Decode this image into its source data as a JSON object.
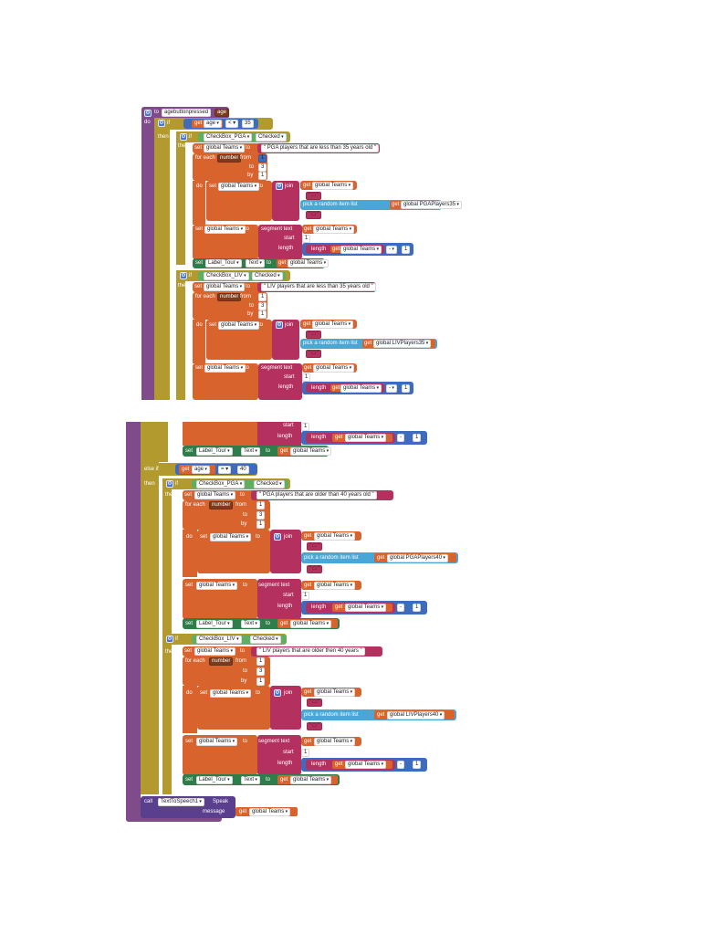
{
  "top": {
    "header_to": "to",
    "proc_name": "agebuttonpressed",
    "param": "age",
    "do": "do",
    "if": "if",
    "get": "get",
    "age": "age",
    "lt": "< ▾",
    "thirtyfive": "35",
    "then": "then",
    "if2": "if",
    "checkbox_pga": "CheckBox_PGA",
    "checked": "Checked",
    "set": "set",
    "global_teams": "global Teams",
    "to": "to",
    "pga_msg": "\" PGA players that are less than 35 years old \"",
    "for_each": "for each",
    "number": "number",
    "from": "from",
    "one": "1",
    "to2": "to",
    "three": "3",
    "by": "by",
    "do2": "do",
    "join": "join",
    "quote_open": "\" □ \"",
    "pick_random": "pick a random item  list",
    "global_pga35": "global PGAPlayers35",
    "segment_text": "segment  text",
    "start": "start",
    "length": "length",
    "length_fn": "length",
    "minus": "-",
    "label_tour": "Label_Tour",
    "text": "Text",
    "checkbox_liv": "CheckBox_LIV",
    "liv_msg": "\" LIV players that are less than 35 years old \"",
    "global_liv35": "global LIVPlayers35"
  },
  "bottom": {
    "start": "start",
    "length": "length",
    "length_fn": "length",
    "global_teams": "global Teams",
    "get": "get",
    "one": "1",
    "minus": "-",
    "set": "set",
    "label_tour": "Label_Tour",
    "text": "Text",
    "to": "to",
    "else_if": "else if",
    "age": "age",
    "eq": "= ▾",
    "forty": "40",
    "then": "then",
    "if": "if",
    "checkbox_pga": "CheckBox_PGA",
    "checked": "Checked",
    "pga_msg": "\" PGA players that are older than 40 years old \"",
    "for_each": "for each",
    "number": "number",
    "from": "from",
    "to2": "to",
    "three": "3",
    "by": "by",
    "do": "do",
    "join": "join",
    "quote": "\" □ \"",
    "pick_random": "pick a random item  list",
    "global_pga40": "global PGAPlayers40",
    "segment_text": "segment  text",
    "checkbox_liv": "CheckBox_LIV",
    "liv_msg": "\" LIV players that are older then 40 years \"",
    "global_liv40": "global LIVPlayers40",
    "call": "call",
    "tts": "TextToSpeech1",
    "speak": "Speak",
    "message": "message"
  }
}
